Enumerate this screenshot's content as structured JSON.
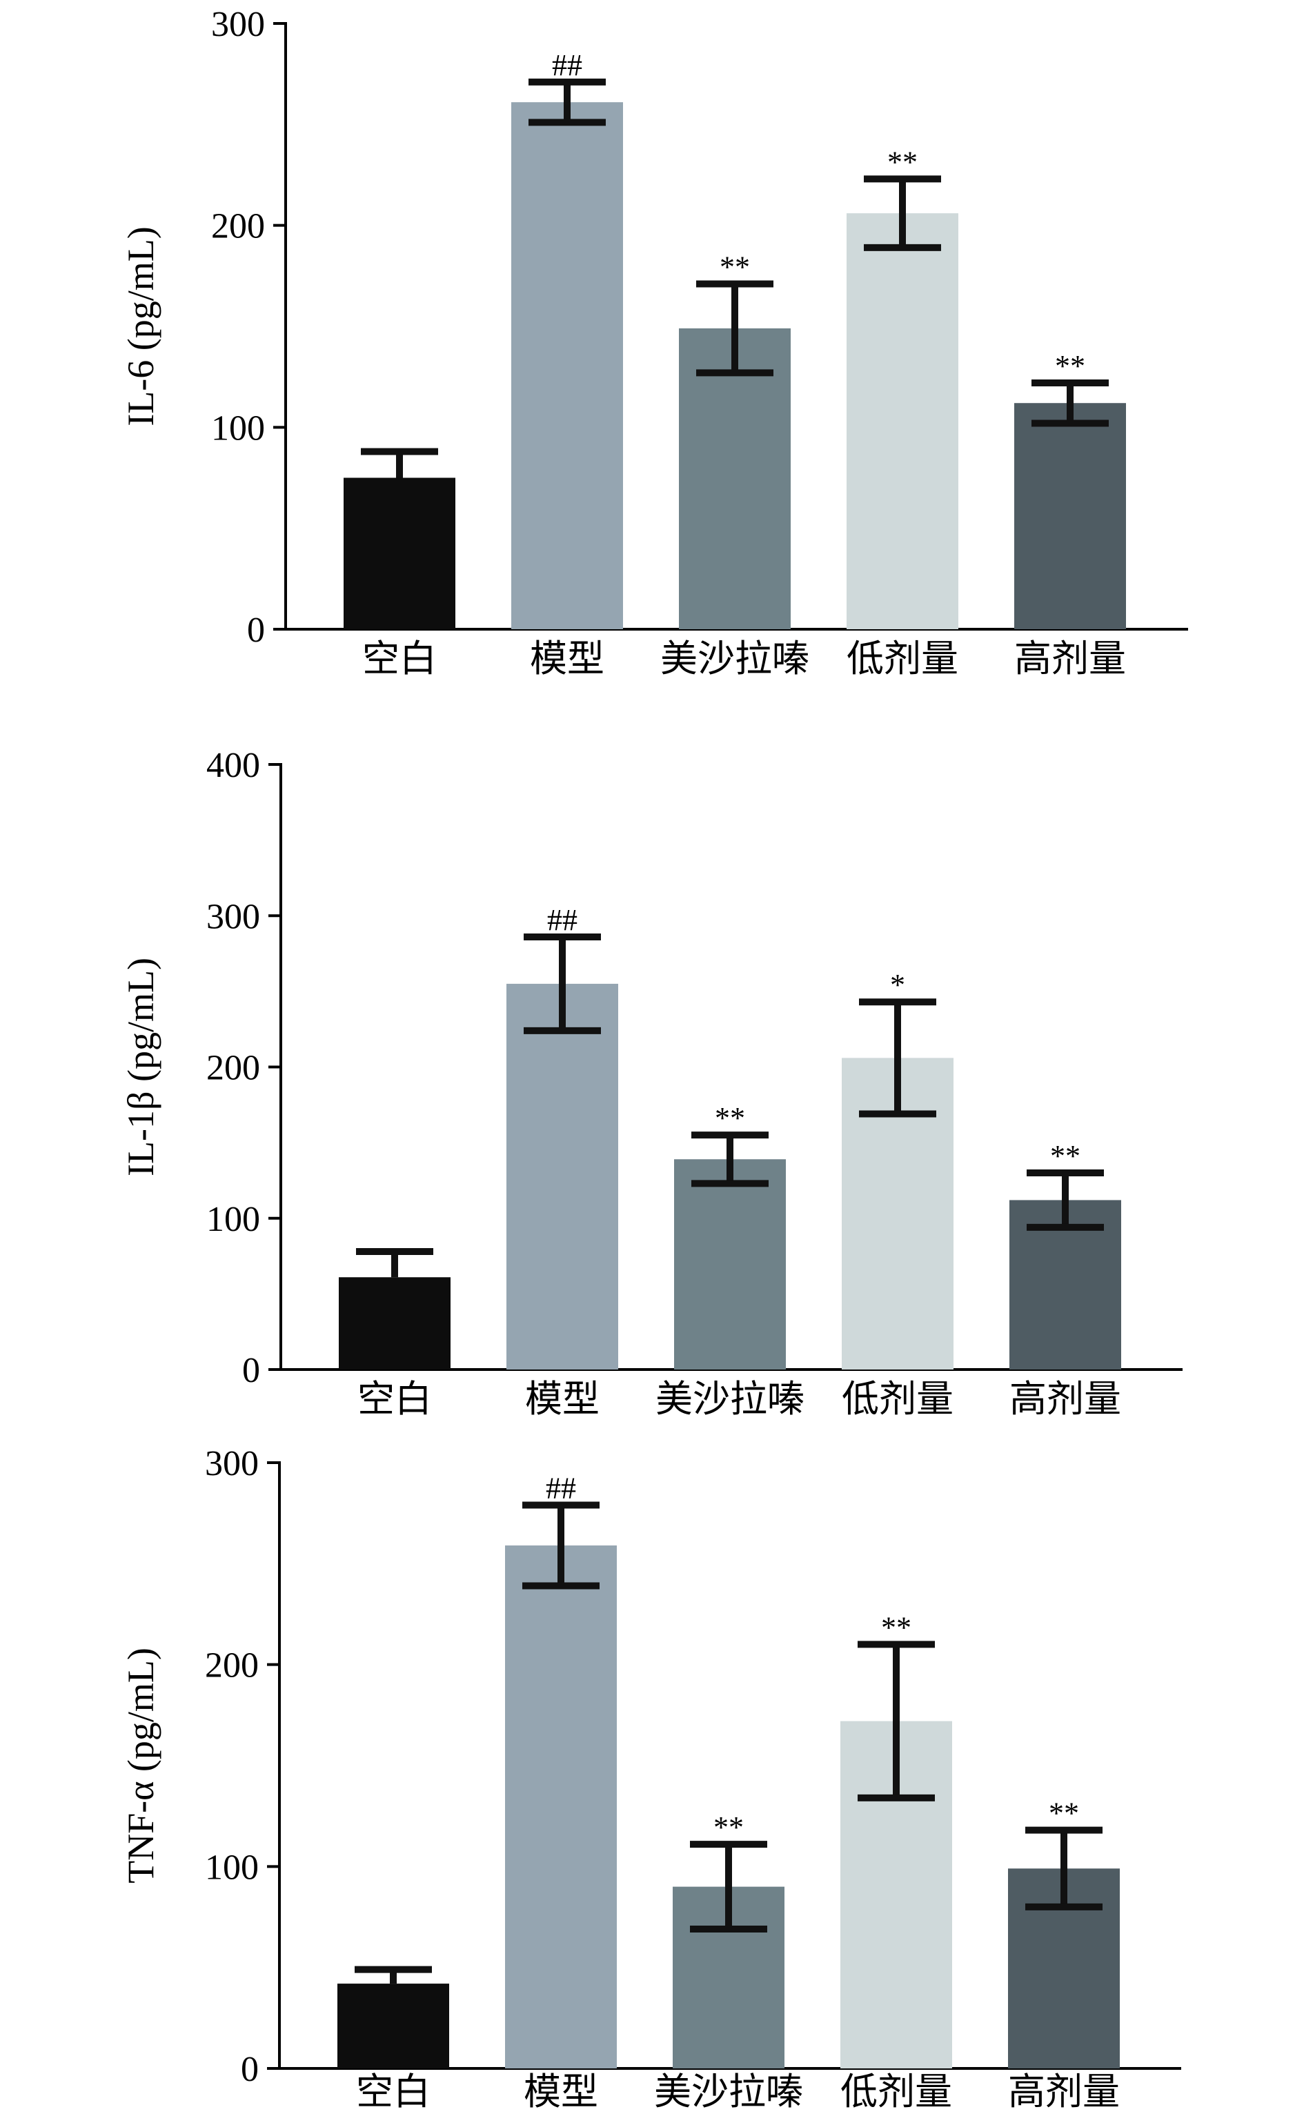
{
  "chart_data": [
    {
      "type": "bar",
      "title": "",
      "xlabel": "",
      "ylabel": "IL-6 (pg/mL)",
      "ylim": [
        0,
        300
      ],
      "yticks": [
        0,
        100,
        200,
        300
      ],
      "categories": [
        "空白",
        "模型",
        "美沙拉嗪",
        "低剂量",
        "高剂量"
      ],
      "values": [
        75,
        261,
        149,
        206,
        112
      ],
      "errors": [
        13,
        10,
        22,
        17,
        10
      ],
      "error_style": [
        "upper",
        "both",
        "both",
        "both",
        "both"
      ],
      "annotations": [
        "",
        "##",
        "**",
        "**",
        "**"
      ],
      "colors": [
        "#0d0d0d",
        "#95a5b1",
        "#6f8289",
        "#cfd9da",
        "#4f5c63"
      ],
      "grid": false,
      "legend": "none"
    },
    {
      "type": "bar",
      "title": "",
      "xlabel": "",
      "ylabel": "IL-1β (pg/mL)",
      "ylim": [
        0,
        400
      ],
      "yticks": [
        0,
        100,
        200,
        300,
        400
      ],
      "categories": [
        "空白",
        "模型",
        "美沙拉嗪",
        "低剂量",
        "高剂量"
      ],
      "values": [
        61,
        255,
        139,
        206,
        112
      ],
      "errors": [
        17,
        31,
        16,
        37,
        18
      ],
      "error_style": [
        "upper",
        "both",
        "both",
        "both",
        "both"
      ],
      "annotations": [
        "",
        "##",
        "**",
        "*",
        "**"
      ],
      "colors": [
        "#0d0d0d",
        "#95a5b1",
        "#6f8289",
        "#cfd9da",
        "#4f5c63"
      ],
      "grid": false,
      "legend": "none"
    },
    {
      "type": "bar",
      "title": "",
      "xlabel": "",
      "ylabel": "TNF-α (pg/mL)",
      "ylim": [
        0,
        300
      ],
      "yticks": [
        0,
        100,
        200,
        300
      ],
      "categories": [
        "空白",
        "模型",
        "美沙拉嗪",
        "低剂量",
        "高剂量"
      ],
      "values": [
        42,
        259,
        90,
        172,
        99
      ],
      "errors": [
        7,
        20,
        21,
        38,
        19
      ],
      "error_style": [
        "upper",
        "both",
        "both",
        "both",
        "both"
      ],
      "annotations": [
        "",
        "##",
        "**",
        "**",
        "**"
      ],
      "colors": [
        "#0d0d0d",
        "#95a5b1",
        "#6f8289",
        "#cfd9da",
        "#4f5c63"
      ],
      "grid": false,
      "legend": "none"
    }
  ]
}
